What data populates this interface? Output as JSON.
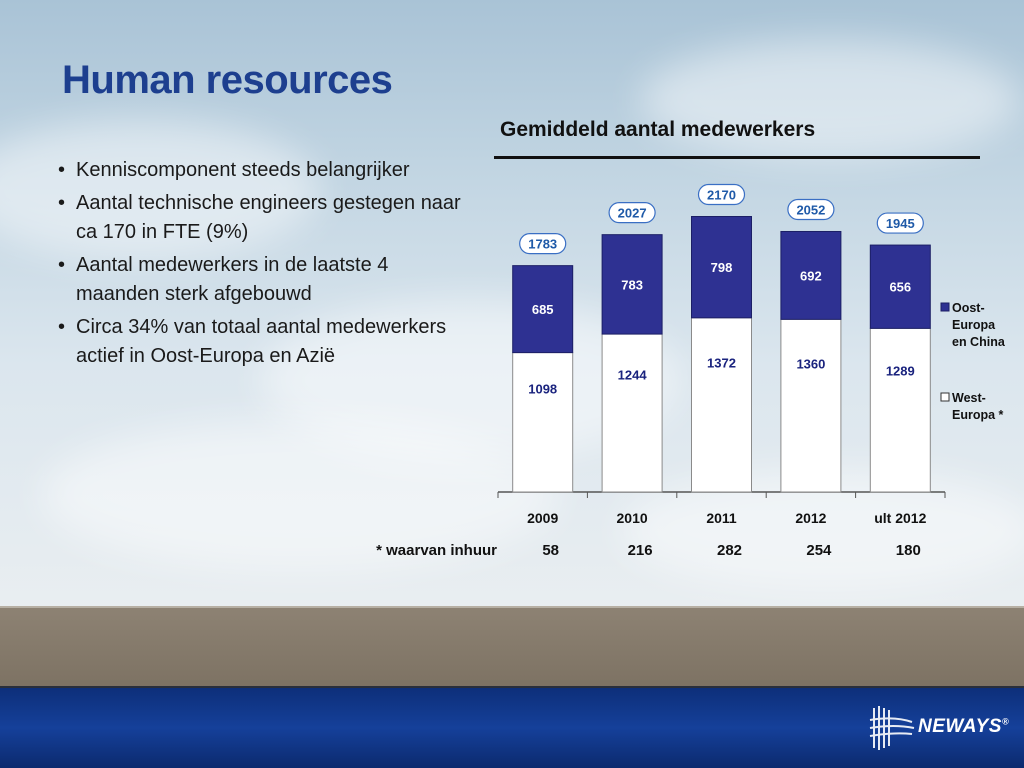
{
  "slide": {
    "title": "Human resources",
    "bullets": [
      "Kenniscomponent steeds belangrijker",
      "Aantal technische engineers gestegen naar ca 170 in FTE (9%)",
      "Aantal medewerkers in de laatste 4 maanden sterk afgebouwd",
      "Circa 34% van totaal aantal medewerkers actief in Oost-Europa en Azië"
    ],
    "logo_text": "NEWAYS",
    "logo_sup": "®"
  },
  "chart_data": {
    "type": "bar",
    "stacked": true,
    "title": "Gemiddeld aantal medewerkers",
    "categories": [
      "2009",
      "2010",
      "2011",
      "2012",
      "ult 2012"
    ],
    "series": [
      {
        "name": "West-Europa *",
        "values": [
          1098,
          1244,
          1372,
          1360,
          1289
        ],
        "color": "#ffffff"
      },
      {
        "name": "Oost-Europa en China",
        "values": [
          685,
          783,
          798,
          692,
          656
        ],
        "color": "#2e3192"
      }
    ],
    "totals": [
      1783,
      2027,
      2170,
      2052,
      1945
    ],
    "legend_lines": {
      "oost": [
        "Oost-",
        "Europa",
        "en China"
      ],
      "west": [
        "West-",
        "Europa *"
      ]
    },
    "legend_position": "right",
    "ylim": [
      0,
      2300
    ],
    "grid": false,
    "footnote": {
      "label": "* waarvan inhuur",
      "values": [
        58,
        216,
        282,
        254,
        180
      ]
    },
    "colors": {
      "title": "#1d3f8f",
      "bar_dark": "#2e3192",
      "bar_light": "#ffffff",
      "total_border": "#3a6fc4",
      "total_text": "#1f5aa8",
      "value_text_dark": "#1a237e"
    }
  }
}
